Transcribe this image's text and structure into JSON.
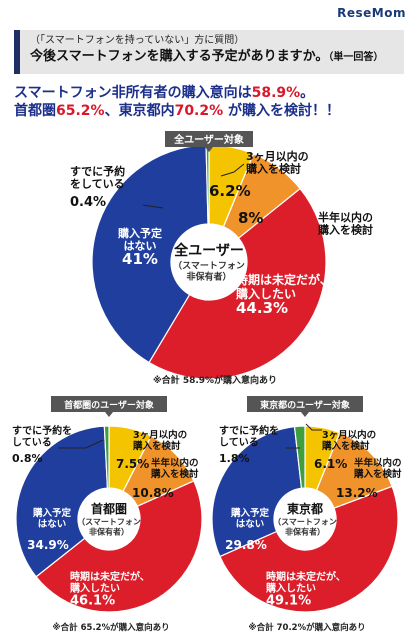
{
  "logo": "ReseMom",
  "question": {
    "sub": "（「スマートフォンを持っていない」方に質問）",
    "main": "今後スマートフォンを購入する予定がありますか。",
    "note": "（単一回答）"
  },
  "headline": {
    "line1_a": "スマートフォン非所有者の購入意向は",
    "line1_b": "58.9%",
    "line1_c": "。",
    "line2_a": "首都圏",
    "line2_b": "65.2%",
    "line2_c": "、東京都内",
    "line2_d": "70.2%",
    "line2_e": " が購入を検討！！"
  },
  "colors": {
    "within3m": "#f5c400",
    "within6m": "#f0932b",
    "undecided": "#dc1e2a",
    "noplan": "#203e9e",
    "reserved": "#3f9f3f",
    "tab": "#555555"
  },
  "chart_data": [
    {
      "type": "pie",
      "title": "全ユーザー対象",
      "center_label": "全ユーザー",
      "center_sub1": "（スマートフォン",
      "center_sub2": "非保有者）",
      "footnote": "※合計 58.9%が購入意向あり",
      "categories": [
        "3ヶ月以内の購入を検討",
        "半年以内の購入を検討",
        "時期は未定だが、購入したい",
        "購入予定はない",
        "すでに予約をしている"
      ],
      "values": [
        6.2,
        8,
        44.3,
        41,
        0.4
      ],
      "labels": [
        {
          "lines": [
            "3ヶ月以内の",
            "購入を検討"
          ],
          "value": "6.2%"
        },
        {
          "lines": [
            "半年以内の",
            "購入を検討"
          ],
          "value": "8%"
        },
        {
          "lines": [
            "時期は未定だが、",
            "購入したい"
          ],
          "value": "44.3%"
        },
        {
          "lines": [
            "購入予定",
            "はない"
          ],
          "value": "41%"
        },
        {
          "lines": [
            "すでに予約",
            "をしている"
          ],
          "value": "0.4%"
        }
      ]
    },
    {
      "type": "pie",
      "title": "首都圏のユーザー対象",
      "center_label": "首都圏",
      "center_sub1": "（スマートフォン",
      "center_sub2": "非保有者）",
      "footnote": "※合計 65.2%が購入意向あり",
      "categories": [
        "3ヶ月以内の購入を検討",
        "半年以内の購入を検討",
        "時期は未定だが、購入したい",
        "購入予定はない",
        "すでに予約をしている"
      ],
      "values": [
        7.5,
        10.8,
        46.1,
        34.9,
        0.8
      ],
      "labels": [
        {
          "lines": [
            "3ヶ月以内の",
            "購入を検討"
          ],
          "value": "7.5%"
        },
        {
          "lines": [
            "半年以内の",
            "購入を検討"
          ],
          "value": "10.8%"
        },
        {
          "lines": [
            "時期は未定だが、",
            "購入したい"
          ],
          "value": "46.1%"
        },
        {
          "lines": [
            "購入予定",
            "はない"
          ],
          "value": "34.9%"
        },
        {
          "lines": [
            "すでに予約を",
            "している"
          ],
          "value": "0.8%"
        }
      ]
    },
    {
      "type": "pie",
      "title": "東京都のユーザー対象",
      "center_label": "東京都",
      "center_sub1": "（スマートフォン",
      "center_sub2": "非保有者）",
      "footnote": "※合計 70.2%が購入意向あり",
      "categories": [
        "3ヶ月以内の購入を検討",
        "半年以内の購入を検討",
        "時期は未定だが、購入したい",
        "購入予定はない",
        "すでに予約をしている"
      ],
      "values": [
        6.1,
        13.2,
        49.1,
        29.8,
        1.8
      ],
      "labels": [
        {
          "lines": [
            "3ヶ月以内の",
            "購入を検討"
          ],
          "value": "6.1%"
        },
        {
          "lines": [
            "半年以内の",
            "購入を検討"
          ],
          "value": "13.2%"
        },
        {
          "lines": [
            "時期は未定だが、",
            "購入したい"
          ],
          "value": "49.1%"
        },
        {
          "lines": [
            "購入予定",
            "はない"
          ],
          "value": "29.8%"
        },
        {
          "lines": [
            "すでに予約を",
            "している"
          ],
          "value": "1.8%"
        }
      ]
    }
  ]
}
